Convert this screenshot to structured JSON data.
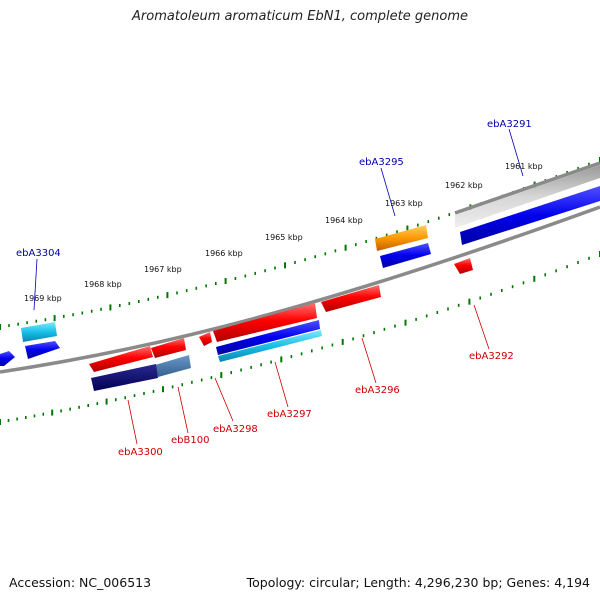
{
  "title": "Aromatoleum aromaticum EbN1, complete genome",
  "footer": {
    "accession": "Accession: NC_006513",
    "topology": "Topology: circular; Length: 4,296,230 bp; Genes: 4,194"
  },
  "colors": {
    "label_top": "#0000aa",
    "label_bottom": "#cc0000",
    "tick": "#007700",
    "backbone": "#888888"
  },
  "scale": {
    "ticks": [
      {
        "label": "1961 kbp"
      },
      {
        "label": "1962 kbp"
      },
      {
        "label": "1963 kbp"
      },
      {
        "label": "1964 kbp"
      },
      {
        "label": "1965 kbp"
      },
      {
        "label": "1966 kbp"
      },
      {
        "label": "1967 kbp"
      },
      {
        "label": "1968 kbp"
      },
      {
        "label": "1969 kbp"
      }
    ]
  },
  "gene_labels": {
    "top": [
      {
        "name": "ebA3291"
      },
      {
        "name": "ebA3295"
      },
      {
        "name": "ebA3304"
      }
    ],
    "bottom": [
      {
        "name": "ebA3292"
      },
      {
        "name": "ebA3296"
      },
      {
        "name": "ebA3297"
      },
      {
        "name": "ebA3298"
      },
      {
        "name": "ebB100"
      },
      {
        "name": "ebA3300"
      }
    ]
  }
}
